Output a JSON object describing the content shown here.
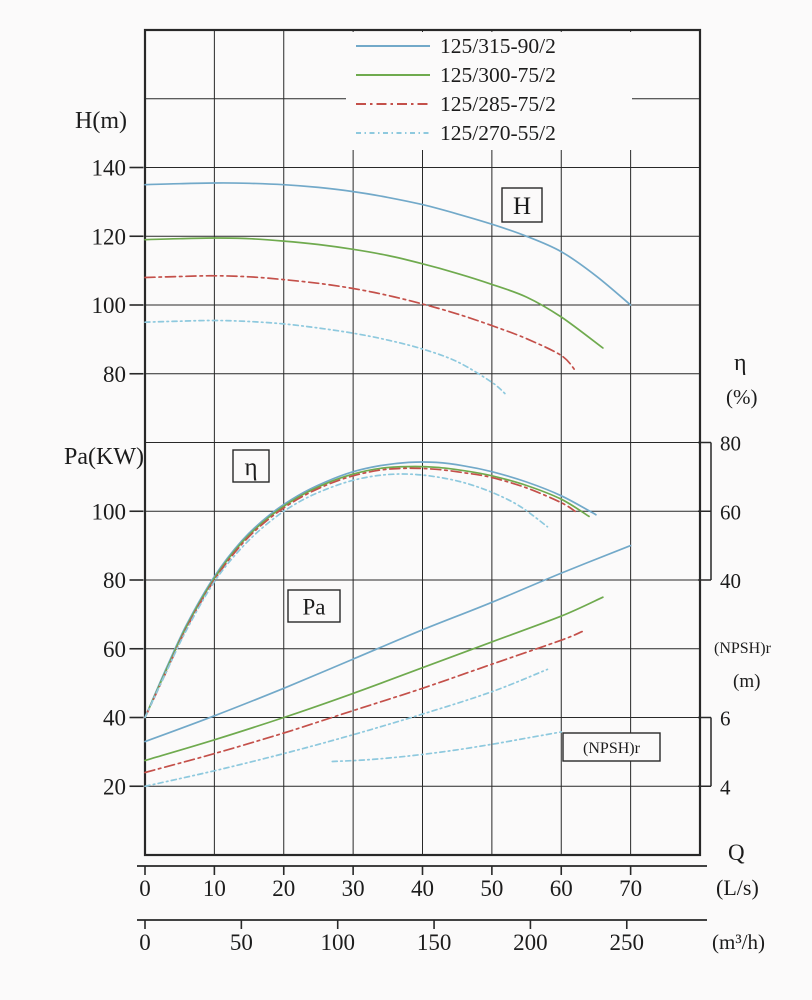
{
  "chart_data": {
    "type": "line",
    "description": "Pump performance curves: head H, efficiency, shaft power Pa and (NPSH)r versus flow Q",
    "axis_labels": {
      "h_axis": "H(m)",
      "pa_axis": "Pa(KW)",
      "eta_label": "η",
      "eta_unit": "(%)",
      "npsh_label": "(NPSH)r",
      "npsh_unit": "(m)",
      "q_label": "Q",
      "q_unit": "(L/s)",
      "q_unit2": "(m³/h)"
    },
    "region_labels": {
      "H": "H",
      "eta": "η",
      "Pa": "Pa",
      "npsh": "(NPSH)r"
    },
    "axes": {
      "H": {
        "ticks": [
          140,
          120,
          100,
          80
        ]
      },
      "Pa": {
        "ticks": [
          100,
          80,
          60,
          40,
          20
        ]
      },
      "eta": {
        "ticks": [
          80,
          60,
          40
        ],
        "range": [
          40,
          80
        ]
      },
      "npsh": {
        "ticks": [
          6,
          4
        ],
        "range": [
          4,
          6
        ]
      },
      "Q_Ls": {
        "ticks": [
          0,
          10,
          20,
          30,
          40,
          50,
          60,
          70
        ],
        "range": [
          0,
          80
        ]
      },
      "Q_m3h": {
        "ticks": [
          0,
          50,
          100,
          150,
          200,
          250
        ]
      }
    },
    "grid": {
      "on": true,
      "columns": 8,
      "rows": 12
    },
    "legend_position": "top-center",
    "series": [
      {
        "name": "125/315-90/2",
        "color": "#72a9c9",
        "dash": "",
        "H": {
          "Q": [
            0,
            5,
            10,
            15,
            20,
            25,
            30,
            35,
            40,
            45,
            50,
            55,
            60,
            65,
            70
          ],
          "m": [
            135,
            135.3,
            135.5,
            135.4,
            135,
            134.2,
            133,
            131.3,
            129.2,
            126.5,
            123.5,
            120,
            115.5,
            108.5,
            100
          ]
        },
        "eta": {
          "Q": [
            0,
            3,
            6,
            10,
            14,
            18,
            22,
            26,
            30,
            34,
            38,
            42,
            46,
            50,
            55,
            60,
            65
          ],
          "pct": [
            0,
            14,
            27,
            41,
            51.5,
            59,
            64.5,
            68.5,
            71.5,
            73.3,
            74.2,
            74.2,
            73.2,
            71.5,
            68.5,
            64.5,
            59
          ]
        },
        "Pa": {
          "Q": [
            0,
            10,
            20,
            30,
            40,
            50,
            60,
            70
          ],
          "kW": [
            33,
            40.5,
            48.5,
            57,
            65.5,
            73.5,
            82,
            90
          ]
        }
      },
      {
        "name": "125/300-75/2",
        "color": "#6faa4e",
        "dash": "",
        "H": {
          "Q": [
            0,
            5,
            10,
            15,
            20,
            25,
            30,
            35,
            40,
            45,
            50,
            55,
            60,
            66
          ],
          "m": [
            119,
            119.3,
            119.5,
            119.3,
            118.6,
            117.6,
            116.2,
            114.4,
            112,
            109.2,
            106,
            102.3,
            96.5,
            87.5
          ]
        },
        "eta": {
          "Q": [
            0,
            3,
            6,
            10,
            14,
            18,
            22,
            26,
            30,
            34,
            38,
            42,
            46,
            50,
            55,
            60,
            64
          ],
          "pct": [
            0,
            13.5,
            26.5,
            40.5,
            51,
            58.5,
            64,
            68,
            70.8,
            72.5,
            73,
            72.8,
            71.8,
            70.3,
            67.5,
            63.5,
            58.5
          ]
        },
        "Pa": {
          "Q": [
            0,
            10,
            20,
            30,
            40,
            50,
            60,
            66
          ],
          "kW": [
            27.5,
            33.5,
            40,
            47,
            54.5,
            62,
            69.5,
            75
          ]
        }
      },
      {
        "name": "125/285-75/2",
        "color": "#c4504a",
        "dash": "10 4 2.5 4",
        "H": {
          "Q": [
            0,
            5,
            10,
            15,
            20,
            25,
            30,
            35,
            40,
            45,
            50,
            55,
            60,
            62
          ],
          "m": [
            108,
            108.3,
            108.5,
            108.2,
            107.4,
            106.3,
            104.8,
            102.8,
            100.3,
            97.4,
            94,
            90.2,
            85.3,
            81
          ]
        },
        "eta": {
          "Q": [
            0,
            3,
            6,
            10,
            14,
            18,
            22,
            26,
            30,
            34,
            38,
            42,
            46,
            50,
            55,
            60,
            62
          ],
          "pct": [
            0,
            13,
            26,
            40,
            50.5,
            58,
            63.5,
            67.5,
            70.3,
            72,
            72.5,
            72.2,
            71.2,
            69.8,
            66.8,
            62.5,
            60
          ]
        },
        "Pa": {
          "Q": [
            0,
            10,
            20,
            30,
            40,
            50,
            60,
            63
          ],
          "kW": [
            24,
            29.5,
            35.5,
            42,
            48.5,
            55.5,
            62.5,
            65
          ]
        }
      },
      {
        "name": "125/270-55/2",
        "color": "#8ec9de",
        "dash": "5 3.5 1.5 3.5",
        "H": {
          "Q": [
            0,
            5,
            10,
            15,
            20,
            25,
            30,
            35,
            40,
            45,
            50,
            52
          ],
          "m": [
            95,
            95.3,
            95.5,
            95.2,
            94.5,
            93.3,
            91.8,
            89.8,
            87.2,
            83.5,
            77.5,
            74
          ]
        },
        "eta": {
          "Q": [
            0,
            3,
            6,
            10,
            14,
            18,
            22,
            26,
            30,
            34,
            38,
            42,
            46,
            50,
            54,
            58
          ],
          "pct": [
            0,
            13,
            25.5,
            39.5,
            49.5,
            57,
            62.5,
            66.3,
            69,
            70.5,
            70.8,
            70,
            68.3,
            65.5,
            61.5,
            55.5
          ]
        },
        "Pa": {
          "Q": [
            0,
            10,
            20,
            30,
            40,
            50,
            58
          ],
          "kW": [
            20,
            24.5,
            29.5,
            35,
            41,
            47.5,
            54
          ]
        }
      }
    ],
    "npsh_curve": {
      "name": "(NPSH)r",
      "color": "#8ec9de",
      "dash": "5 3.5 1.5 3.5",
      "Q": [
        27,
        32,
        38,
        44,
        50,
        55,
        60
      ],
      "m": [
        4.72,
        4.77,
        4.88,
        5.03,
        5.22,
        5.4,
        5.58
      ]
    }
  },
  "style": {
    "background": "#fbfafa",
    "grid_color": "#282828",
    "text_color": "#1c1c1c"
  }
}
